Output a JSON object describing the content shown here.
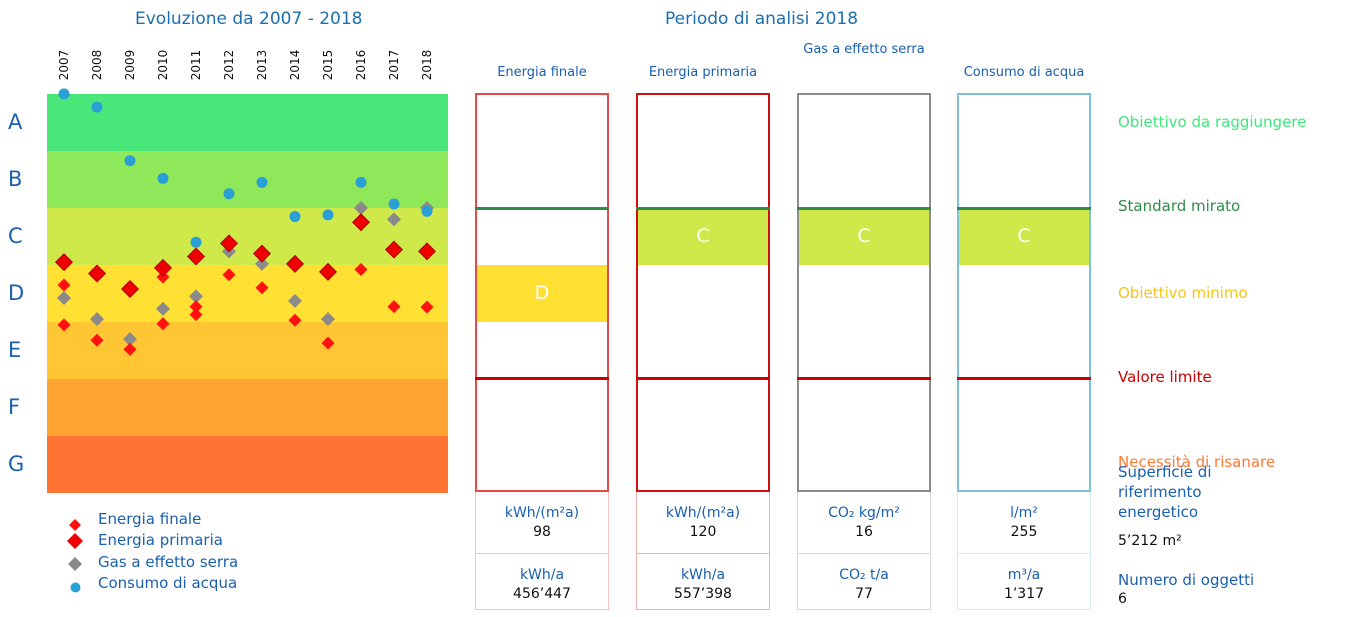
{
  "left_title": "Evoluzione da 2007 - 2018",
  "right_title": "Periodo di analisi 2018",
  "colors": {
    "bandA": "#49e67a",
    "bandB": "#8ee85a",
    "bandC": "#cfe84a",
    "bandD": "#ffe033",
    "bandE": "#ffc533",
    "bandF": "#ffa333",
    "bandG": "#ff7333",
    "energia_finale": "#ff1111",
    "energia_primaria": "#ee0000",
    "gas": "#8a8a8a",
    "acqua": "#2a9fd6",
    "target_line": "#2e8b4a",
    "limit_line": "#cc0000"
  },
  "chart_data": {
    "type": "scatter",
    "x": [
      2007,
      2008,
      2009,
      2010,
      2011,
      2012,
      2013,
      2014,
      2015,
      2016,
      2017,
      2018
    ],
    "grades": [
      "A",
      "B",
      "C",
      "D",
      "D",
      "E",
      "F",
      "G"
    ],
    "y_scale_note": "grade position, 0 = top of A, 7 = bottom of G",
    "series": [
      {
        "name": "Energia finale",
        "values": [
          [
            3.35,
            4.05
          ],
          [
            3.18,
            4.32
          ],
          [
            4.48
          ],
          [
            3.21,
            4.03
          ],
          [
            3.73,
            3.87
          ],
          [
            3.17
          ],
          [
            3.4
          ],
          [
            3.97
          ],
          [
            4.37
          ],
          [
            3.08
          ],
          [
            3.73
          ],
          [
            3.74
          ]
        ]
      },
      {
        "name": "Energia primaria",
        "values": [
          2.95,
          3.15,
          3.42,
          3.05,
          2.85,
          2.62,
          2.8,
          2.98,
          3.12,
          2.25,
          2.73,
          2.76
        ]
      },
      {
        "name": "Gas a effetto serra",
        "values": [
          3.58,
          3.95,
          4.3,
          3.77,
          3.55,
          2.76,
          2.98,
          3.63,
          3.95,
          2.0,
          2.2,
          2.0
        ]
      },
      {
        "name": "Consumo di acqua",
        "values": [
          0.0,
          0.23,
          1.17,
          1.48,
          2.6,
          1.75,
          1.55,
          2.15,
          2.12,
          1.55,
          1.93,
          2.06
        ]
      }
    ],
    "columns": [
      {
        "title": "Energia finale",
        "grade": "D",
        "unit1": "kWh/(m²a)",
        "value1": "98",
        "unit2": "kWh/a",
        "value2": "456’447",
        "color": "#e84a4a"
      },
      {
        "title": "Energia primaria",
        "grade": "C",
        "unit1": "kWh/(m²a)",
        "value1": "120",
        "unit2": "kWh/a",
        "value2": "557’398",
        "color": "#cc1111"
      },
      {
        "title": "Gas a effetto serra",
        "grade": "C",
        "unit1": "CO₂ kg/m²",
        "value1": "16",
        "unit2": "CO₂ t/a",
        "value2": "77",
        "color": "#8c8c8c"
      },
      {
        "title": "Consumo di acqua",
        "grade": "C",
        "unit1": "l/m²",
        "value1": "255",
        "unit2": "m³/a",
        "value2": "1’317",
        "color": "#7ec0d8"
      }
    ],
    "targets": [
      {
        "label": "Obiettivo da raggiungere",
        "color": "#3ee87a"
      },
      {
        "label": "Standard mirato",
        "color": "#2e8b4a"
      },
      {
        "label": "Obiettivo minimo",
        "color": "#f5c518"
      },
      {
        "label": "Valore limite",
        "color": "#cc0000"
      },
      {
        "label": "Necessità di risanare",
        "color": "#ff7a33"
      }
    ],
    "legend": [
      "Energia finale",
      "Energia primaria",
      "Gas a effetto serra",
      "Consumo di acqua"
    ]
  },
  "info": {
    "area_label": "Superficie di riferimento energetico",
    "area_value": "5’212 m²",
    "objects_label": "Numero di oggetti",
    "objects_value": "6"
  }
}
